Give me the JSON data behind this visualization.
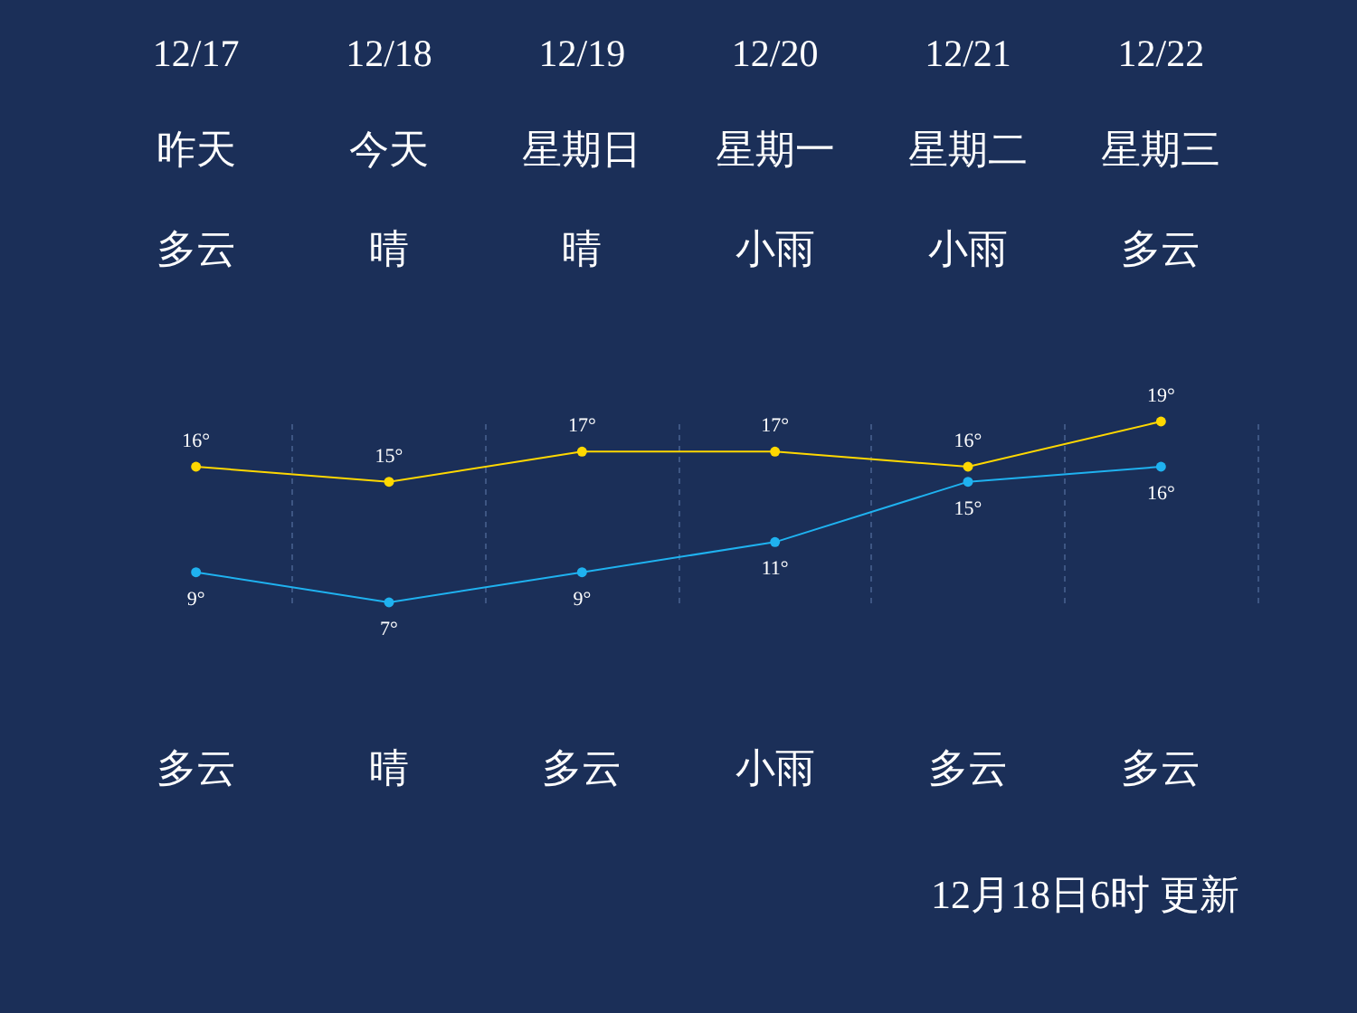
{
  "chart_data": {
    "type": "line",
    "categories": [
      "12/17",
      "12/18",
      "12/19",
      "12/20",
      "12/21",
      "12/22"
    ],
    "series": [
      {
        "color": "#ffd800",
        "values": [
          16,
          15,
          17,
          17,
          16,
          19
        ],
        "value_labels": [
          "16°",
          "15°",
          "17°",
          "17°",
          "16°",
          "19°"
        ]
      },
      {
        "color": "#1fb2f0",
        "values": [
          9,
          7,
          9,
          11,
          15,
          16
        ],
        "value_labels": [
          "9°",
          "7°",
          "9°",
          "11°",
          "15°",
          "16°"
        ]
      }
    ],
    "marker": "circle",
    "grid": "x",
    "annotations": [
      "昨天",
      "今天",
      "星期日",
      "星期一",
      "星期二",
      "星期三",
      "多云",
      "晴",
      "晴",
      "小雨",
      "小雨",
      "多云",
      "多云",
      "晴",
      "多云",
      "小雨",
      "多云",
      "多云",
      "12月18日6时 更新"
    ]
  }
}
